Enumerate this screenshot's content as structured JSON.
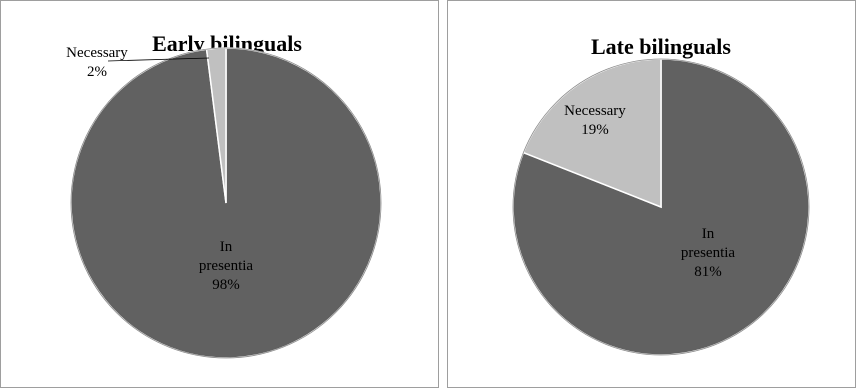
{
  "chart_data": [
    {
      "type": "pie",
      "title": "Early bilinguals",
      "slices": [
        {
          "label_lines": [
            "In",
            "presentia"
          ],
          "value": 98,
          "value_text": "98%",
          "color": "#616161"
        },
        {
          "label_lines": [
            "Necessary"
          ],
          "value": 2,
          "value_text": "2%",
          "color": "#c0c0c0"
        }
      ]
    },
    {
      "type": "pie",
      "title": "Late bilinguals",
      "slices": [
        {
          "label_lines": [
            "In",
            "presentia"
          ],
          "value": 81,
          "value_text": "81%",
          "color": "#616161"
        },
        {
          "label_lines": [
            "Necessary"
          ],
          "value": 19,
          "value_text": "19%",
          "color": "#c0c0c0"
        }
      ]
    }
  ]
}
